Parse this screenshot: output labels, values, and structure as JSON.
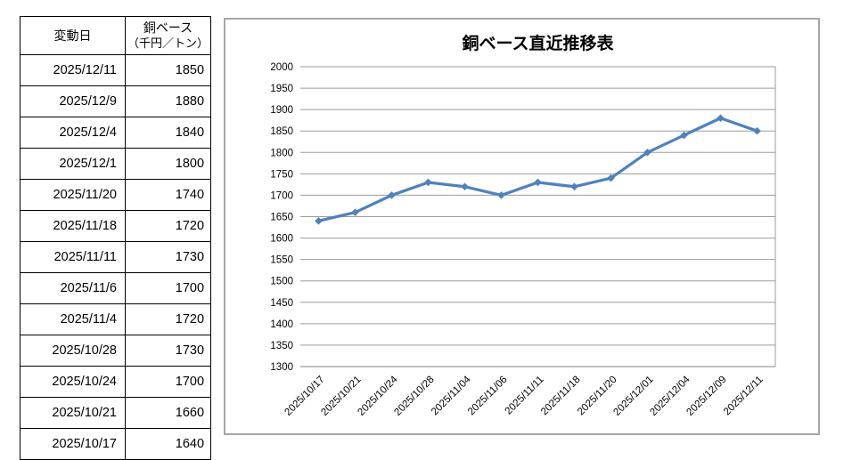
{
  "table": {
    "header": {
      "col1": "変動日",
      "col2_line1": "銅ベース",
      "col2_line2": "（千円／トン）"
    },
    "highlight_color": "#ff0000",
    "rows": [
      {
        "date": "2025/12/11",
        "value": "1850",
        "highlight": true
      },
      {
        "date": "2025/12/9",
        "value": "1880",
        "highlight": false
      },
      {
        "date": "2025/12/4",
        "value": "1840",
        "highlight": false
      },
      {
        "date": "2025/12/1",
        "value": "1800",
        "highlight": false
      },
      {
        "date": "2025/11/20",
        "value": "1740",
        "highlight": false
      },
      {
        "date": "2025/11/18",
        "value": "1720",
        "highlight": false
      },
      {
        "date": "2025/11/11",
        "value": "1730",
        "highlight": false
      },
      {
        "date": "2025/11/6",
        "value": "1700",
        "highlight": false
      },
      {
        "date": "2025/11/4",
        "value": "1720",
        "highlight": false
      },
      {
        "date": "2025/10/28",
        "value": "1730",
        "highlight": false
      },
      {
        "date": "2025/10/24",
        "value": "1700",
        "highlight": false
      },
      {
        "date": "2025/10/21",
        "value": "1660",
        "highlight": false
      },
      {
        "date": "2025/10/17",
        "value": "1640",
        "highlight": false
      }
    ]
  },
  "chart_data": {
    "type": "line",
    "title": "銅ベース直近推移表",
    "categories": [
      "2025/10/17",
      "2025/10/21",
      "2025/10/24",
      "2025/10/28",
      "2025/11/04",
      "2025/11/06",
      "2025/11/11",
      "2025/11/18",
      "2025/11/20",
      "2025/12/01",
      "2025/12/04",
      "2025/12/09",
      "2025/12/11"
    ],
    "values": [
      1640,
      1660,
      1700,
      1730,
      1720,
      1700,
      1730,
      1720,
      1740,
      1800,
      1840,
      1880,
      1850
    ],
    "xlabel": "",
    "ylabel": "",
    "ylim": [
      1300,
      2000
    ],
    "ytick_step": 50,
    "grid": true,
    "legend_position": "none",
    "marker": "diamond",
    "axis_label_rotation": -45,
    "colors": {
      "line": "#4f81bd",
      "gridline": "#9b9b9b",
      "axis_line": "#808080",
      "tick_label": "#000000",
      "title": "#000000"
    }
  }
}
